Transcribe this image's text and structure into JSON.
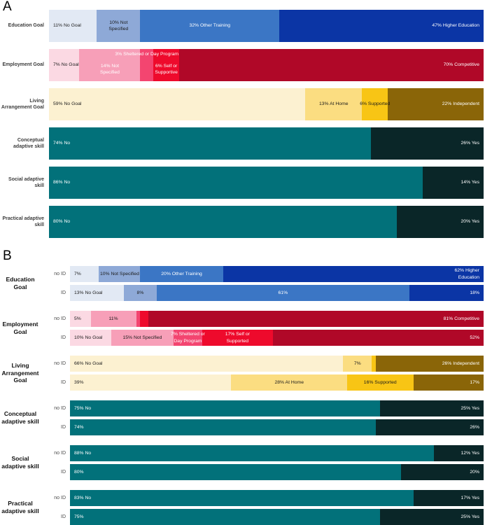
{
  "figure": {
    "description": "Two-panel stacked horizontal percentage bar chart",
    "background": "#ffffff"
  },
  "palette": {
    "blue_light": "#E2E9F4",
    "blue_mid_light": "#8EA9D7",
    "blue_mid": "#3B76C5",
    "blue_dark": "#0B35A5",
    "pink_light": "#FBD9E3",
    "pink_mid": "#F79FB8",
    "pink_bright": "#F34570",
    "red_bright": "#EE0A2C",
    "red_dark": "#B00828",
    "cream": "#FCF1D1",
    "yellow_light": "#FBDD81",
    "gold": "#F8C515",
    "gold_dark": "#8A6508",
    "teal": "#02717A",
    "teal_dark": "#0A2628"
  },
  "chart_data": [
    {
      "type": "bar",
      "subtype": "horizontal-stacked-percentage",
      "panel": "A",
      "unit": "%",
      "xlim": [
        0,
        100
      ],
      "grid": false,
      "legend": "none",
      "groups": [
        {
          "label": "Education Goal",
          "rows": [
            {
              "sub": null,
              "segments": [
                {
                  "value": 11,
                  "label": "11% No Goal",
                  "color": "#E2E9F4",
                  "text_color": "#1b1b1b",
                  "align": "left"
                },
                {
                  "value": 10,
                  "label": "10% Not\nSpecified",
                  "color": "#8EA9D7",
                  "text_color": "#1b1b1b",
                  "align": "center"
                },
                {
                  "value": 32,
                  "label": "32% Other Training",
                  "color": "#3B76C5",
                  "text_color": "#ffffff",
                  "align": "center"
                },
                {
                  "value": 47,
                  "label": "47% Higher Education",
                  "color": "#0B35A5",
                  "text_color": "#ffffff",
                  "align": "right"
                }
              ]
            }
          ]
        },
        {
          "label": "Employment Goal",
          "rows": [
            {
              "sub": null,
              "segments": [
                {
                  "value": 7,
                  "label": "7% No Goal",
                  "color": "#FBD9E3",
                  "text_color": "#1b1b1b",
                  "align": "left"
                },
                {
                  "value": 14,
                  "label": "14% Not\nSpecified",
                  "color": "#F79FB8",
                  "text_color": "#ffffff",
                  "align": "center",
                  "label_low": true
                },
                {
                  "value": 3,
                  "label": "3% Sheltered or Day Program",
                  "color": "#F34570",
                  "text_color": "#ffffff",
                  "align": "center",
                  "label_top": true
                },
                {
                  "value": 6,
                  "label": "6% Self or\nSupportive",
                  "color": "#EE0A2C",
                  "text_color": "#ffffff",
                  "align": "center",
                  "label_low": true
                },
                {
                  "value": 70,
                  "label": "70% Competitive",
                  "color": "#B00828",
                  "text_color": "#ffffff",
                  "align": "right"
                }
              ]
            }
          ]
        },
        {
          "label": "Living Arrangement Goal",
          "rows": [
            {
              "sub": null,
              "segments": [
                {
                  "value": 59,
                  "label": "59% No Goal",
                  "color": "#FCF1D1",
                  "text_color": "#1b1b1b",
                  "align": "left"
                },
                {
                  "value": 13,
                  "label": "13% At Home",
                  "color": "#FBDD81",
                  "text_color": "#1b1b1b",
                  "align": "center"
                },
                {
                  "value": 6,
                  "label": "6% Supported",
                  "color": "#F8C515",
                  "text_color": "#1b1b1b",
                  "align": "center"
                },
                {
                  "value": 22,
                  "label": "22% Independent",
                  "color": "#8A6508",
                  "text_color": "#ffffff",
                  "align": "right"
                }
              ]
            }
          ]
        },
        {
          "label": "Conceptual adaptive skill",
          "rows": [
            {
              "sub": null,
              "segments": [
                {
                  "value": 74,
                  "label": "74% No",
                  "color": "#02717A",
                  "text_color": "#ffffff",
                  "align": "left"
                },
                {
                  "value": 26,
                  "label": "26% Yes",
                  "color": "#0A2628",
                  "text_color": "#ffffff",
                  "align": "right"
                }
              ]
            }
          ]
        },
        {
          "label": "Social adaptive skill",
          "rows": [
            {
              "sub": null,
              "segments": [
                {
                  "value": 86,
                  "label": "86% No",
                  "color": "#02717A",
                  "text_color": "#ffffff",
                  "align": "left"
                },
                {
                  "value": 14,
                  "label": "14% Yes",
                  "color": "#0A2628",
                  "text_color": "#ffffff",
                  "align": "right"
                }
              ]
            }
          ]
        },
        {
          "label": "Practical adaptive skill",
          "rows": [
            {
              "sub": null,
              "segments": [
                {
                  "value": 80,
                  "label": "80% No",
                  "color": "#02717A",
                  "text_color": "#ffffff",
                  "align": "left"
                },
                {
                  "value": 20,
                  "label": "20% Yes",
                  "color": "#0A2628",
                  "text_color": "#ffffff",
                  "align": "right"
                }
              ]
            }
          ]
        }
      ]
    },
    {
      "type": "bar",
      "subtype": "horizontal-stacked-percentage",
      "panel": "B",
      "unit": "%",
      "xlim": [
        0,
        100
      ],
      "grid": false,
      "legend": "none",
      "row_labels": [
        "no ID",
        "ID"
      ],
      "groups": [
        {
          "label": "Education Goal",
          "rows": [
            {
              "sub": "no ID",
              "segments": [
                {
                  "value": 7,
                  "label": "7%",
                  "color": "#E2E9F4",
                  "text_color": "#1b1b1b",
                  "align": "left"
                },
                {
                  "value": 10,
                  "label": "10% Not Specified",
                  "color": "#8EA9D7",
                  "text_color": "#1b1b1b",
                  "align": "center"
                },
                {
                  "value": 20,
                  "label": "20% Other Training",
                  "color": "#3B76C5",
                  "text_color": "#ffffff",
                  "align": "center"
                },
                {
                  "value": 62,
                  "label": "62% Higher\nEducation",
                  "color": "#0B35A5",
                  "text_color": "#ffffff",
                  "align": "right"
                }
              ]
            },
            {
              "sub": "ID",
              "segments": [
                {
                  "value": 13,
                  "label": "13% No Goal",
                  "color": "#E2E9F4",
                  "text_color": "#1b1b1b",
                  "align": "left"
                },
                {
                  "value": 8,
                  "label": "8%",
                  "color": "#8EA9D7",
                  "text_color": "#1b1b1b",
                  "align": "center"
                },
                {
                  "value": 61,
                  "label": "61%",
                  "color": "#3B76C5",
                  "text_color": "#ffffff",
                  "align": "center"
                },
                {
                  "value": 18,
                  "label": "18%",
                  "color": "#0B35A5",
                  "text_color": "#ffffff",
                  "align": "right"
                }
              ]
            }
          ]
        },
        {
          "label": "Employment Goal",
          "rows": [
            {
              "sub": "no ID",
              "segments": [
                {
                  "value": 5,
                  "label": "5%",
                  "color": "#FBD9E3",
                  "text_color": "#1b1b1b",
                  "align": "left"
                },
                {
                  "value": 11,
                  "label": "11%",
                  "color": "#F79FB8",
                  "text_color": "#1b1b1b",
                  "align": "center"
                },
                {
                  "value": 1,
                  "label": "",
                  "color": "#F34570",
                  "text_color": "#ffffff",
                  "align": "center"
                },
                {
                  "value": 2,
                  "label": "",
                  "color": "#EE0A2C",
                  "text_color": "#ffffff",
                  "align": "center"
                },
                {
                  "value": 81,
                  "label": "81% Competitive",
                  "color": "#B00828",
                  "text_color": "#ffffff",
                  "align": "right"
                }
              ]
            },
            {
              "sub": "ID",
              "segments": [
                {
                  "value": 10,
                  "label": "10% No Goal",
                  "color": "#FBD9E3",
                  "text_color": "#1b1b1b",
                  "align": "left"
                },
                {
                  "value": 15,
                  "label": "15% Not Specified",
                  "color": "#F79FB8",
                  "text_color": "#1b1b1b",
                  "align": "center"
                },
                {
                  "value": 7,
                  "label": "7% Sheltered or\nDay Program",
                  "color": "#F34570",
                  "text_color": "#ffffff",
                  "align": "center"
                },
                {
                  "value": 17,
                  "label": "17% Self or\nSupported",
                  "color": "#EE0A2C",
                  "text_color": "#ffffff",
                  "align": "center"
                },
                {
                  "value": 52,
                  "label": "52%",
                  "color": "#B00828",
                  "text_color": "#ffffff",
                  "align": "right"
                }
              ]
            }
          ]
        },
        {
          "label": "Living Arrangement Goal",
          "rows": [
            {
              "sub": "no ID",
              "segments": [
                {
                  "value": 66,
                  "label": "66% No Goal",
                  "color": "#FCF1D1",
                  "text_color": "#1b1b1b",
                  "align": "left"
                },
                {
                  "value": 7,
                  "label": "7%",
                  "color": "#FBDD81",
                  "text_color": "#1b1b1b",
                  "align": "center"
                },
                {
                  "value": 1,
                  "label": "",
                  "color": "#F8C515",
                  "text_color": "#1b1b1b",
                  "align": "center"
                },
                {
                  "value": 26,
                  "label": "26% Independent",
                  "color": "#8A6508",
                  "text_color": "#ffffff",
                  "align": "right"
                }
              ]
            },
            {
              "sub": "ID",
              "segments": [
                {
                  "value": 39,
                  "label": "39%",
                  "color": "#FCF1D1",
                  "text_color": "#1b1b1b",
                  "align": "left"
                },
                {
                  "value": 28,
                  "label": "28% At Home",
                  "color": "#FBDD81",
                  "text_color": "#1b1b1b",
                  "align": "center"
                },
                {
                  "value": 16,
                  "label": "16% Supported",
                  "color": "#F8C515",
                  "text_color": "#1b1b1b",
                  "align": "center"
                },
                {
                  "value": 17,
                  "label": "17%",
                  "color": "#8A6508",
                  "text_color": "#ffffff",
                  "align": "right"
                }
              ]
            }
          ]
        },
        {
          "label": "Conceptual adaptive skill",
          "rows": [
            {
              "sub": "no ID",
              "segments": [
                {
                  "value": 75,
                  "label": "75% No",
                  "color": "#02717A",
                  "text_color": "#ffffff",
                  "align": "left"
                },
                {
                  "value": 25,
                  "label": "25% Yes",
                  "color": "#0A2628",
                  "text_color": "#ffffff",
                  "align": "right"
                }
              ]
            },
            {
              "sub": "ID",
              "segments": [
                {
                  "value": 74,
                  "label": "74%",
                  "color": "#02717A",
                  "text_color": "#ffffff",
                  "align": "left"
                },
                {
                  "value": 26,
                  "label": "26%",
                  "color": "#0A2628",
                  "text_color": "#ffffff",
                  "align": "right"
                }
              ]
            }
          ]
        },
        {
          "label": "Social adaptive skill",
          "rows": [
            {
              "sub": "no ID",
              "segments": [
                {
                  "value": 88,
                  "label": "88% No",
                  "color": "#02717A",
                  "text_color": "#ffffff",
                  "align": "left"
                },
                {
                  "value": 12,
                  "label": "12% Yes",
                  "color": "#0A2628",
                  "text_color": "#ffffff",
                  "align": "right"
                }
              ]
            },
            {
              "sub": "ID",
              "segments": [
                {
                  "value": 80,
                  "label": "80%",
                  "color": "#02717A",
                  "text_color": "#ffffff",
                  "align": "left"
                },
                {
                  "value": 20,
                  "label": "20%",
                  "color": "#0A2628",
                  "text_color": "#ffffff",
                  "align": "right"
                }
              ]
            }
          ]
        },
        {
          "label": "Practical adaptive skill",
          "rows": [
            {
              "sub": "no ID",
              "segments": [
                {
                  "value": 83,
                  "label": "83% No",
                  "color": "#02717A",
                  "text_color": "#ffffff",
                  "align": "left"
                },
                {
                  "value": 17,
                  "label": "17% Yes",
                  "color": "#0A2628",
                  "text_color": "#ffffff",
                  "align": "right"
                }
              ]
            },
            {
              "sub": "ID",
              "segments": [
                {
                  "value": 75,
                  "label": "75%",
                  "color": "#02717A",
                  "text_color": "#ffffff",
                  "align": "left"
                },
                {
                  "value": 25,
                  "label": "25% Yes",
                  "color": "#0A2628",
                  "text_color": "#ffffff",
                  "align": "right"
                }
              ]
            }
          ]
        }
      ]
    }
  ]
}
